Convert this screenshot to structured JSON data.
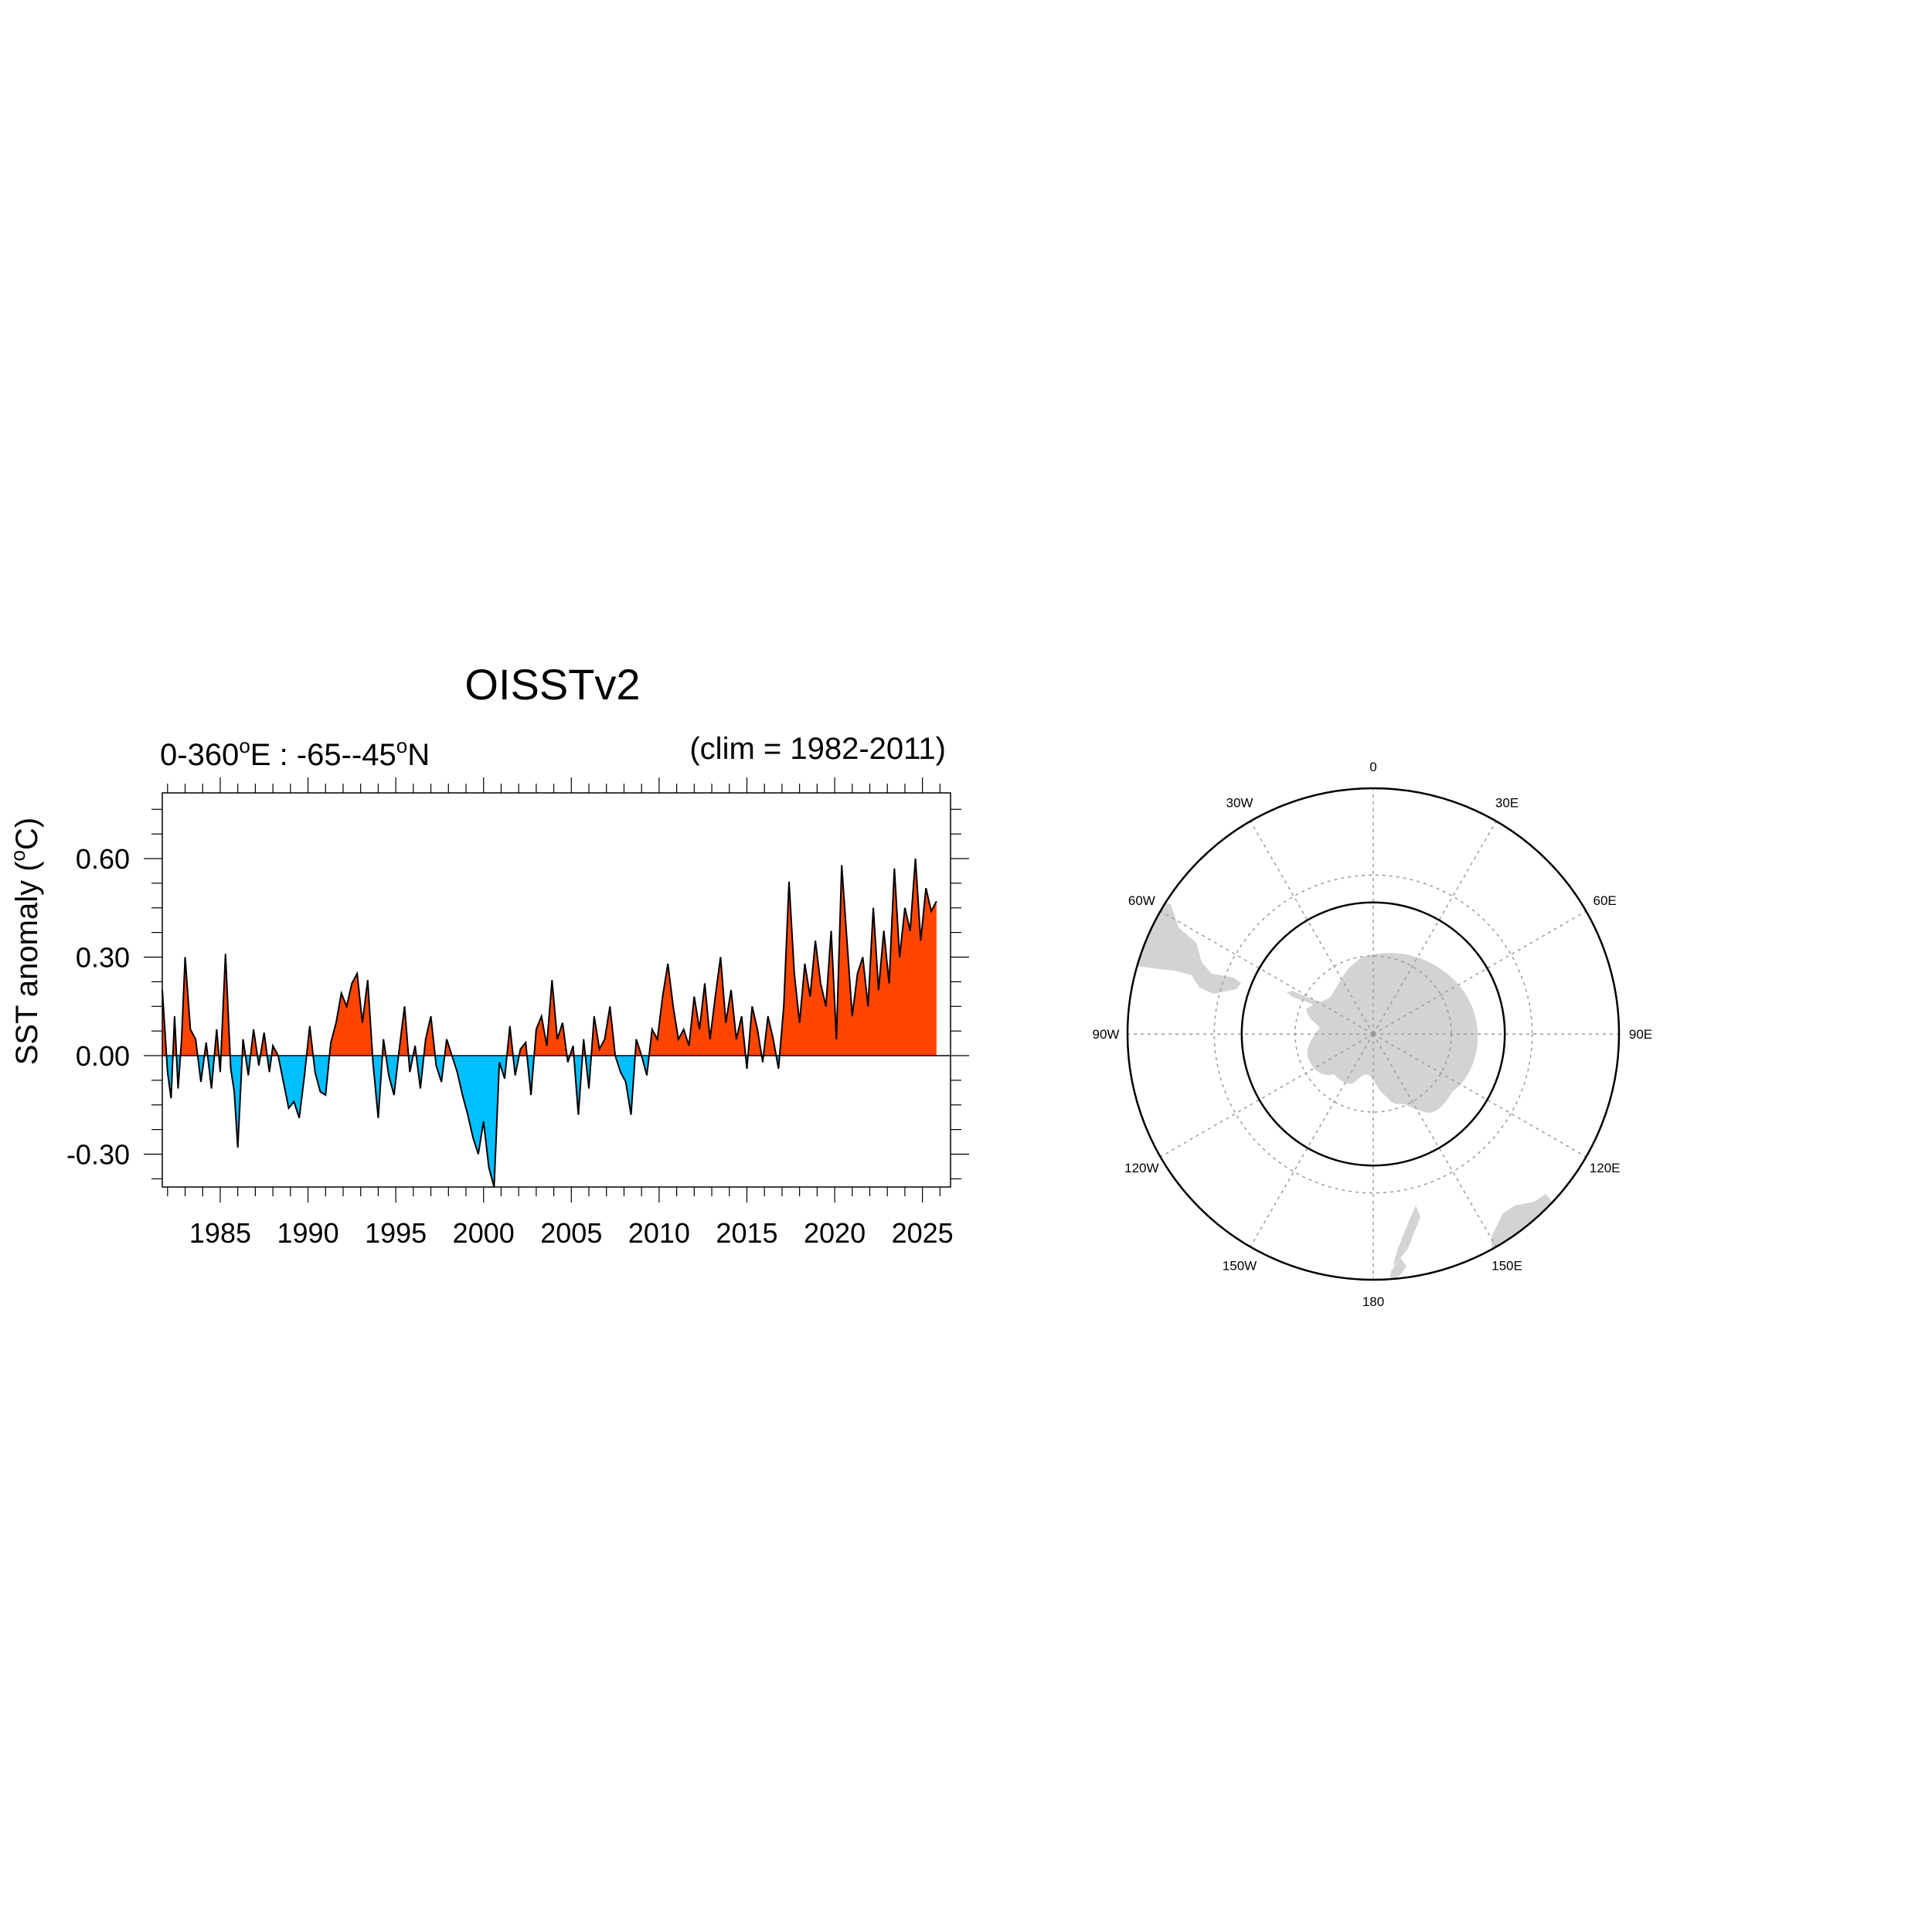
{
  "chart_data": [
    {
      "type": "area",
      "title": "OISSTv2",
      "left_subtitle": {
        "pre": "0-360",
        "sup1": "o",
        "mid": "E : -65--45",
        "sup2": "o",
        "post": "N"
      },
      "right_subtitle": "(clim = 1982-2011)",
      "ylabel": {
        "pre": "SST anomaly (",
        "sup": "o",
        "post": "C)"
      },
      "xlabel": "",
      "xlim": [
        1981.7,
        2026.6
      ],
      "ylim": [
        -0.4,
        0.8
      ],
      "xticks": [
        1985,
        1990,
        1995,
        2000,
        2005,
        2010,
        2015,
        2020,
        2025
      ],
      "xtick_labels": [
        "1985",
        "1990",
        "1995",
        "2000",
        "2005",
        "2010",
        "2015",
        "2020",
        "2025"
      ],
      "yticks": [
        -0.3,
        0,
        0.3,
        0.6
      ],
      "ytick_labels": [
        "-0.30",
        "0.00",
        "0.30",
        "0.60"
      ],
      "grid": false,
      "colors": {
        "positive": "#ff4500",
        "negative": "#00bfff",
        "line": "#000000"
      },
      "x": [
        1981.7,
        1982.0,
        1982.2,
        1982.4,
        1982.6,
        1982.8,
        1983.0,
        1983.3,
        1983.6,
        1983.9,
        1984.2,
        1984.5,
        1984.8,
        1985.0,
        1985.3,
        1985.6,
        1985.8,
        1986.0,
        1986.3,
        1986.6,
        1986.9,
        1987.2,
        1987.5,
        1987.8,
        1988.0,
        1988.3,
        1988.6,
        1988.9,
        1989.2,
        1989.5,
        1989.8,
        1990.1,
        1990.4,
        1990.7,
        1991.0,
        1991.3,
        1991.6,
        1991.9,
        1992.2,
        1992.5,
        1992.8,
        1993.1,
        1993.4,
        1993.7,
        1994.0,
        1994.3,
        1994.6,
        1994.9,
        1995.2,
        1995.5,
        1995.8,
        1996.1,
        1996.4,
        1996.7,
        1997.0,
        1997.3,
        1997.6,
        1997.9,
        1998.2,
        1998.5,
        1998.8,
        1999.1,
        1999.4,
        1999.7,
        2000.0,
        2000.3,
        2000.6,
        2000.9,
        2001.2,
        2001.5,
        2001.8,
        2002.1,
        2002.4,
        2002.7,
        2003.0,
        2003.3,
        2003.6,
        2003.9,
        2004.2,
        2004.5,
        2004.8,
        2005.1,
        2005.4,
        2005.7,
        2006.0,
        2006.3,
        2006.6,
        2006.9,
        2007.2,
        2007.5,
        2007.8,
        2008.1,
        2008.4,
        2008.7,
        2009.0,
        2009.3,
        2009.6,
        2009.9,
        2010.2,
        2010.5,
        2010.8,
        2011.1,
        2011.4,
        2011.7,
        2012.0,
        2012.3,
        2012.6,
        2012.9,
        2013.2,
        2013.5,
        2013.8,
        2014.1,
        2014.4,
        2014.7,
        2015.0,
        2015.3,
        2015.6,
        2015.9,
        2016.2,
        2016.5,
        2016.8,
        2017.1,
        2017.4,
        2017.7,
        2018.0,
        2018.3,
        2018.6,
        2018.9,
        2019.2,
        2019.5,
        2019.8,
        2020.1,
        2020.4,
        2020.7,
        2021.0,
        2021.3,
        2021.6,
        2021.9,
        2022.2,
        2022.5,
        2022.8,
        2023.1,
        2023.4,
        2023.7,
        2024.0,
        2024.3,
        2024.6,
        2024.9,
        2025.2,
        2025.5,
        2025.8
      ],
      "values": [
        0.2,
        -0.05,
        -0.13,
        0.12,
        -0.1,
        0.05,
        0.3,
        0.08,
        0.05,
        -0.08,
        0.04,
        -0.1,
        0.08,
        -0.05,
        0.31,
        -0.04,
        -0.11,
        -0.28,
        0.05,
        -0.06,
        0.08,
        -0.03,
        0.07,
        -0.05,
        0.03,
        0.0,
        -0.08,
        -0.16,
        -0.14,
        -0.19,
        -0.06,
        0.09,
        -0.05,
        -0.11,
        -0.12,
        0.04,
        0.1,
        0.19,
        0.15,
        0.22,
        0.25,
        0.1,
        0.23,
        -0.02,
        -0.19,
        0.05,
        -0.06,
        -0.12,
        0.02,
        0.15,
        -0.05,
        0.03,
        -0.1,
        0.05,
        0.12,
        -0.03,
        -0.08,
        0.05,
        0.0,
        -0.05,
        -0.12,
        -0.18,
        -0.25,
        -0.3,
        -0.2,
        -0.34,
        -0.4,
        -0.02,
        -0.07,
        0.09,
        -0.06,
        0.02,
        0.04,
        -0.12,
        0.08,
        0.12,
        0.03,
        0.23,
        0.05,
        0.1,
        -0.02,
        0.03,
        -0.18,
        0.05,
        -0.1,
        0.12,
        0.02,
        0.05,
        0.15,
        0.0,
        -0.05,
        -0.08,
        -0.18,
        0.05,
        0.0,
        -0.06,
        0.08,
        0.05,
        0.18,
        0.28,
        0.15,
        0.05,
        0.08,
        0.03,
        0.18,
        0.08,
        0.22,
        0.05,
        0.18,
        0.3,
        0.1,
        0.2,
        0.05,
        0.12,
        -0.04,
        0.15,
        0.08,
        -0.02,
        0.12,
        0.05,
        -0.04,
        0.15,
        0.53,
        0.25,
        0.1,
        0.28,
        0.18,
        0.35,
        0.22,
        0.15,
        0.38,
        0.05,
        0.58,
        0.35,
        0.12,
        0.25,
        0.3,
        0.15,
        0.45,
        0.2,
        0.38,
        0.22,
        0.57,
        0.3,
        0.45,
        0.38,
        0.6,
        0.35,
        0.51,
        0.44,
        0.47
      ]
    },
    {
      "type": "map",
      "projection": "south-polar-stereographic",
      "box": {
        "lon": [
          0,
          360
        ],
        "lat": [
          -65,
          -45
        ]
      },
      "colors": {
        "land": "#d3d3d3",
        "grid": "#9a9a9a",
        "box": "#000000"
      },
      "lon_labels": [
        "0",
        "30E",
        "60E",
        "90E",
        "120E",
        "150E",
        "180",
        "150W",
        "120W",
        "90W",
        "60W",
        "30W"
      ]
    }
  ]
}
